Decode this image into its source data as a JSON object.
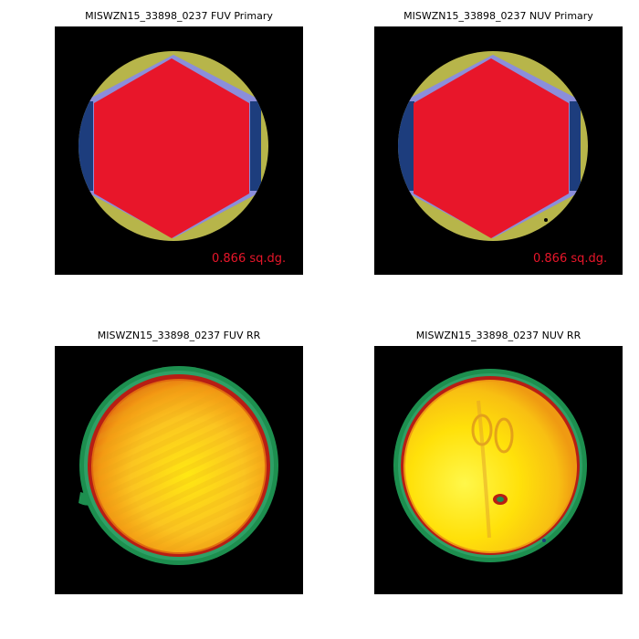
{
  "panels": {
    "fuv_primary": {
      "title": "MISWZN15_33898_0237 FUV Primary",
      "area_label": "0.866 sq.dg."
    },
    "nuv_primary": {
      "title": "MISWZN15_33898_0237 NUV Primary",
      "area_label": "0.866 sq.dg."
    },
    "fuv_rr": {
      "title": "MISWZN15_33898_0237 FUV RR"
    },
    "nuv_rr": {
      "title": "MISWZN15_33898_0237 NUV RR"
    }
  },
  "colors": {
    "background": "#000000",
    "hexagon": "#e8162a",
    "outer_ring": "#b7b54a",
    "inner_lavender": "#8b8edb",
    "inner_navy": "#1d3d7d",
    "area_label": "#e8162a",
    "rr_yellow": "#ffe10a",
    "rr_orange": "#f39a13",
    "rr_red": "#b71e14",
    "rr_green": "#1d8f4f"
  }
}
